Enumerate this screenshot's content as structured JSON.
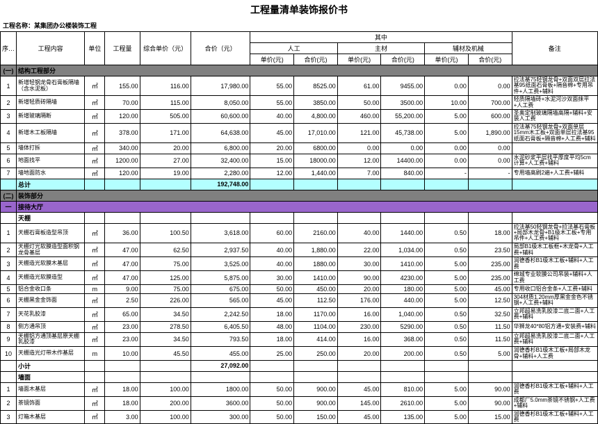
{
  "title": "工程量清单装饰报价书",
  "project_label": "工程名称：",
  "project_name": "某集团办公楼装饰工程",
  "headers": {
    "seq": "序号",
    "content": "工程内容",
    "unit": "单位",
    "qty": "工程量",
    "unit_price": "综合单价（元）",
    "total": "合价（元）",
    "breakdown": "其中",
    "labor": "人工",
    "material": "主材",
    "machine": "辅材及机械",
    "sub_price": "单价(元)",
    "sub_total": "合价(元)",
    "note": "备注"
  },
  "section1": {
    "seq": "(一)",
    "title": "结构工程部分"
  },
  "rows1": [
    {
      "seq": "1",
      "content": "新增轻钢龙骨石膏板隔墙（含水泥板）",
      "unit": "㎡",
      "qty": "155.00",
      "up": "116.00",
      "tot": "17,980.00",
      "lp": "55.00",
      "lt": "8525.00",
      "mp": "61.00",
      "mt": "9455.00",
      "hp": "0.00",
      "ht": "0.00",
      "note": "拉法基75轻钢龙骨+双面双层拉法基95纸面石膏板+隔音棉+专用吊件+人工费+辅料"
    },
    {
      "seq": "2",
      "content": "新增轻质砖隔墙",
      "unit": "㎡",
      "qty": "70.00",
      "up": "115.00",
      "tot": "8,050.00",
      "lp": "55.00",
      "lt": "3850.00",
      "mp": "50.00",
      "mt": "3500.00",
      "hp": "10.00",
      "ht": "700.00",
      "note": "轻质隔墙砖+水泥河沙双面抹平+人工费"
    },
    {
      "seq": "3",
      "content": "新增玻璃隔断",
      "unit": "㎡",
      "qty": "120.00",
      "up": "505.00",
      "tot": "60,600.00",
      "lp": "40.00",
      "lt": "4,800.00",
      "mp": "460.00",
      "mt": "55,200.00",
      "hp": "5.00",
      "ht": "600.00",
      "note": "圣奥定制玻璃隔墙高隔+辅料+安装人工费"
    },
    {
      "seq": "4",
      "content": "新增木工板隔墙",
      "unit": "㎡",
      "qty": "378.00",
      "up": "171.00",
      "tot": "64,638.00",
      "lp": "45.00",
      "lt": "17,010.00",
      "mp": "121.00",
      "mt": "45,738.00",
      "hp": "5.00",
      "ht": "1,890.00",
      "note": "拉法基75轻钢龙骨+双面单层15mm木工板+双面单层拉法基95纸面石膏板+隔音棉+人工费+辅料"
    },
    {
      "seq": "5",
      "content": "墙体打拆",
      "unit": "㎡",
      "qty": "340.00",
      "up": "20.00",
      "tot": "6,800.00",
      "lp": "20.00",
      "lt": "6800.00",
      "mp": "0.00",
      "mt": "0.00",
      "hp": "0.00",
      "ht": "0.00",
      "note": ""
    },
    {
      "seq": "6",
      "content": "地面找平",
      "unit": "㎡",
      "qty": "1200.00",
      "up": "27.00",
      "tot": "32,400.00",
      "lp": "15.00",
      "lt": "18000.00",
      "mp": "12.00",
      "mt": "14400.00",
      "hp": "0.00",
      "ht": "0.00",
      "note": "水泥砂浆平层找平厚度平均5cm计算+人工费+辅料"
    },
    {
      "seq": "7",
      "content": "墙地面防水",
      "unit": "㎡",
      "qty": "120.00",
      "up": "19.00",
      "tot": "2,280.00",
      "lp": "12.00",
      "lt": "1,440.00",
      "mp": "7.00",
      "mt": "840.00",
      "hp": "-",
      "ht": "-",
      "note": "专用墙高刷2遍+人工费+辅料"
    }
  ],
  "subtotal1": {
    "label": "总计",
    "total": "192,748.00"
  },
  "section2": {
    "seq": "(二)",
    "title": "装饰部分"
  },
  "purple": {
    "seq": "一",
    "title": "接待大厅"
  },
  "ceiling_header": "天棚",
  "rows2a": [
    {
      "seq": "1",
      "content": "天棚石膏板造型吊顶",
      "unit": "㎡",
      "qty": "36.00",
      "up": "100.50",
      "tot": "3,618.00",
      "lp": "60.00",
      "lt": "2160.00",
      "mp": "40.00",
      "mt": "1440.00",
      "hp": "0.50",
      "ht": "18.00",
      "note": "拉法基50轻钢龙骨+拉法基石膏板+局部木龙骨+B1级木工板+专用吊件+人工费+辅料"
    },
    {
      "seq": "2",
      "content": "天棚灯光软膜造型面积钢龙骨基层",
      "unit": "㎡",
      "qty": "47.00",
      "up": "62.50",
      "tot": "2,937.50",
      "lp": "40.00",
      "lt": "1,880.00",
      "mp": "22.00",
      "mt": "1,034.00",
      "hp": "0.50",
      "ht": "23.50",
      "note": "局部B1级木工板框+木龙骨+人工费+辅料"
    },
    {
      "seq": "3",
      "content": "天棚造光软膜木基层",
      "unit": "㎡",
      "qty": "47.00",
      "up": "75.00",
      "tot": "3,525.00",
      "lp": "40.00",
      "lt": "1880.00",
      "mp": "30.00",
      "mt": "1410.00",
      "hp": "5.00",
      "ht": "235.00",
      "note": "润德香杉B1级木工板+辅料+人工费"
    },
    {
      "seq": "4",
      "content": "天棚造光软膜造型",
      "unit": "㎡",
      "qty": "47.00",
      "up": "125.00",
      "tot": "5,875.00",
      "lp": "30.00",
      "lt": "1410.00",
      "mp": "90.00",
      "mt": "4230.00",
      "hp": "5.00",
      "ht": "235.00",
      "note": "绵城专业软膜公司吊装+辅料+人工费"
    },
    {
      "seq": "5",
      "content": "铝合金收口条",
      "unit": "m",
      "qty": "9.00",
      "up": "75.00",
      "tot": "675.00",
      "lp": "50.00",
      "lt": "450.00",
      "mp": "20.00",
      "mt": "180.00",
      "hp": "5.00",
      "ht": "45.00",
      "note": "专用收口铝合金条+人工费+辅料"
    },
    {
      "seq": "6",
      "content": "天棚黑金金饰面",
      "unit": "㎡",
      "qty": "2.50",
      "up": "226.00",
      "tot": "565.00",
      "lp": "45.00",
      "lt": "112.50",
      "mp": "176.00",
      "mt": "440.00",
      "hp": "5.00",
      "ht": "12.50",
      "note": "304材质1.20mm厚黑金金色不锈钢+人工费+辅料"
    },
    {
      "seq": "7",
      "content": "天花乳胶漆",
      "unit": "㎡",
      "qty": "65.00",
      "up": "34.50",
      "tot": "2,242.50",
      "lp": "18.00",
      "lt": "1170.00",
      "mp": "16.00",
      "mt": "1,040.00",
      "hp": "0.50",
      "ht": "32.50",
      "note": "立邦超易洗乳胶漆二底二面+人工费+辅料"
    },
    {
      "seq": "8",
      "content": "侧方通吊顶",
      "unit": "㎡",
      "qty": "23.00",
      "up": "278.50",
      "tot": "6,405.50",
      "lp": "48.00",
      "lt": "1104.00",
      "mp": "230.00",
      "mt": "5290.00",
      "hp": "0.50",
      "ht": "11.50",
      "note": "华狮龙40*80铝方通+安装费+辅料"
    },
    {
      "seq": "9",
      "content": "天棚铝方通顶基层原天棚乳胶漆",
      "unit": "㎡",
      "qty": "23.00",
      "up": "34.50",
      "tot": "793.50",
      "lp": "18.00",
      "lt": "414.00",
      "mp": "16.00",
      "mt": "368.00",
      "hp": "0.50",
      "ht": "11.50",
      "note": "立邦超易洗乳胶漆二底二面+人工费+辅料"
    },
    {
      "seq": "10",
      "content": "天棚造光灯带木作基层",
      "unit": "m",
      "qty": "10.00",
      "up": "45.50",
      "tot": "455.00",
      "lp": "25.00",
      "lt": "250.00",
      "mp": "20.00",
      "mt": "200.00",
      "hp": "0.50",
      "ht": "5.00",
      "note": "润德香杉B1级木工板+局部木龙骨+辅料+人工费"
    }
  ],
  "subtotal2a": {
    "label": "小计",
    "total": "27,092.00"
  },
  "wall_header": "墙面",
  "rows2b": [
    {
      "seq": "1",
      "content": "墙面木基层",
      "unit": "㎡",
      "qty": "18.00",
      "up": "100.00",
      "tot": "1800.00",
      "lp": "50.00",
      "lt": "900.00",
      "mp": "45.00",
      "mt": "810.00",
      "hp": "5.00",
      "ht": "90.00",
      "note": "润德香杉B1级木工板+辅料+人工费"
    },
    {
      "seq": "2",
      "content": "茶镜饰面",
      "unit": "㎡",
      "qty": "18.00",
      "up": "200.00",
      "tot": "3600.00",
      "lp": "50.00",
      "lt": "900.00",
      "mp": "145.00",
      "mt": "2610.00",
      "hp": "5.00",
      "ht": "90.00",
      "note": "成都厂5.0mm茶镜不锈钢+人工费+辅料"
    },
    {
      "seq": "3",
      "content": "灯箱木基层",
      "unit": "㎡",
      "qty": "3.00",
      "up": "100.00",
      "tot": "300.00",
      "lp": "50.00",
      "lt": "150.00",
      "mp": "45.00",
      "mt": "135.00",
      "hp": "5.00",
      "ht": "15.00",
      "note": "润德香杉B1级木工板+辅料+人工费"
    }
  ]
}
